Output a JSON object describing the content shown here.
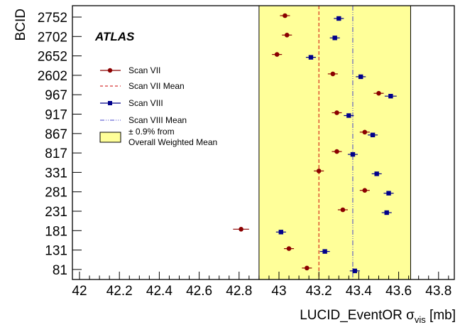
{
  "chart_data": {
    "type": "scatter",
    "orientation": "horizontal",
    "xlabel": "LUCID_EventOR σ",
    "xlabel_sub": "vis",
    "xlabel_unit": " [mb]",
    "ylabel": "BCID",
    "xlim": [
      42.0,
      43.9
    ],
    "xticks": [
      "42",
      "42.2",
      "42.4",
      "42.6",
      "42.8",
      "43",
      "43.2",
      "43.4",
      "43.6",
      "43.8"
    ],
    "xtick_values": [
      42.0,
      42.2,
      42.4,
      42.6,
      42.8,
      43.0,
      43.2,
      43.4,
      43.6,
      43.8
    ],
    "categories": [
      "2752",
      "2702",
      "2652",
      "2602",
      "967",
      "917",
      "867",
      "817",
      "331",
      "281",
      "231",
      "181",
      "131",
      "81"
    ],
    "band": {
      "low": 42.9,
      "high": 43.66,
      "color": "#ffff99"
    },
    "series": [
      {
        "name": "Scan VII",
        "marker": "circle",
        "color": "#8b0000",
        "values": [
          43.03,
          43.04,
          42.99,
          43.27,
          43.5,
          43.29,
          43.43,
          43.29,
          43.2,
          43.43,
          43.32,
          42.81,
          43.05,
          43.14
        ],
        "errors": [
          0.025,
          0.025,
          0.025,
          0.025,
          0.025,
          0.025,
          0.025,
          0.025,
          0.025,
          0.025,
          0.025,
          0.04,
          0.025,
          0.025
        ],
        "mean": 43.2
      },
      {
        "name": "Scan VIII",
        "marker": "square",
        "color": "#00008b",
        "values": [
          43.3,
          43.28,
          43.16,
          43.41,
          43.56,
          43.35,
          43.47,
          43.37,
          43.49,
          43.55,
          43.54,
          43.01,
          43.23,
          43.38
        ],
        "errors": [
          0.025,
          0.025,
          0.025,
          0.025,
          0.03,
          0.025,
          0.025,
          0.025,
          0.025,
          0.025,
          0.025,
          0.025,
          0.025,
          0.025
        ],
        "mean": 43.37
      }
    ],
    "legend": {
      "placement": "top-left",
      "items": [
        "Scan VII",
        "Scan VII Mean",
        "Scan VIII",
        "Scan VIII Mean",
        "± 0.9% from",
        "Overall Weighted Mean"
      ]
    },
    "experiment_label": "ATLAS",
    "grid": false
  }
}
